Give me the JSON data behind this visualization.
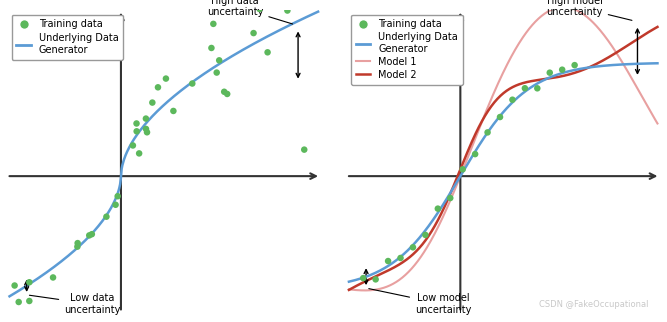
{
  "fig_width": 6.67,
  "fig_height": 3.22,
  "dpi": 100,
  "background_color": "#ffffff",
  "left_panel": {
    "curve_color": "#5b9bd5",
    "dot_color": "#5cb85c",
    "high_uncertainty_text": "High data\nuncertainty",
    "low_uncertainty_text": "Low data\nuncertainty",
    "xlim": [
      -2.0,
      3.5
    ],
    "ylim": [
      -1.8,
      2.2
    ]
  },
  "right_panel": {
    "curve_color": "#5b9bd5",
    "dot_color": "#5cb85c",
    "model1_color": "#e8a0a0",
    "model2_color": "#c0392b",
    "high_uncertainty_text": "High model\nuncertainty",
    "low_uncertainty_text": "Low model\nuncertainty",
    "xlim": [
      -2.0,
      3.5
    ],
    "ylim": [
      -1.8,
      2.2
    ]
  },
  "watermark": "CSDN @FakeOccupational",
  "watermark_color": "#bbbbbb",
  "axis_color": "#333333"
}
